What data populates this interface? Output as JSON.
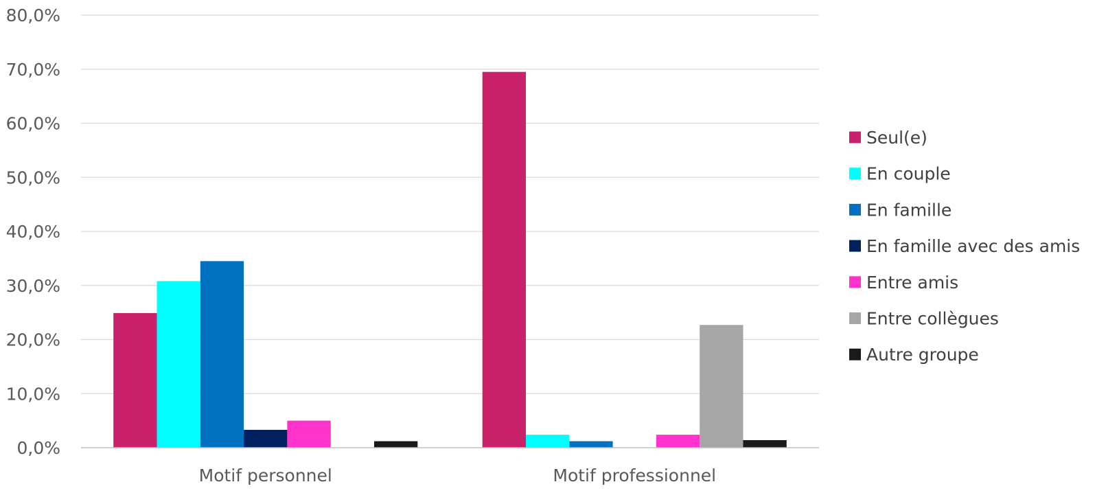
{
  "chart_data": {
    "type": "bar",
    "title": "",
    "xlabel": "",
    "ylabel": "",
    "ylim": [
      0,
      80
    ],
    "yticks": [
      0,
      10,
      20,
      30,
      40,
      50,
      60,
      70,
      80
    ],
    "ytick_labels": [
      "0,0%",
      "10,0%",
      "20,0%",
      "30,0%",
      "40,0%",
      "50,0%",
      "60,0%",
      "70,0%",
      "80,0%"
    ],
    "grid": true,
    "legend_position": "right",
    "categories": [
      "Motif personnel",
      "Motif professionnel"
    ],
    "series": [
      {
        "name": "Seul(e)",
        "color": "#c9216a",
        "values": [
          24.9,
          69.5
        ]
      },
      {
        "name": "En couple",
        "color": "#00ffff",
        "values": [
          30.8,
          2.4
        ]
      },
      {
        "name": "En famille",
        "color": "#0070c0",
        "values": [
          34.5,
          1.2
        ]
      },
      {
        "name": "En famille avec des amis",
        "color": "#002060",
        "values": [
          3.3,
          0.0
        ]
      },
      {
        "name": "Entre amis",
        "color": "#ff33cc",
        "values": [
          5.0,
          2.4
        ]
      },
      {
        "name": "Entre collègues",
        "color": "#a6a6a6",
        "values": [
          0.0,
          22.7
        ]
      },
      {
        "name": "Autre groupe",
        "color": "#1a1a1a",
        "values": [
          1.2,
          1.4
        ]
      }
    ]
  }
}
